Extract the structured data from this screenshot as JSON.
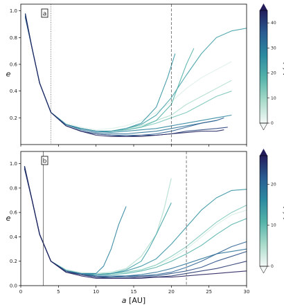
{
  "chart_data": [
    {
      "type": "line",
      "panel_label": "a",
      "xlim": [
        0,
        30
      ],
      "ylim": [
        0,
        1.05
      ],
      "xticks": [
        0,
        5,
        10,
        15,
        20,
        25,
        30
      ],
      "xticklabels_visible": false,
      "yticks": [
        0.2,
        0.4,
        0.6,
        0.8,
        1.0
      ],
      "ytick_labels": [
        "0.2",
        "0.4",
        "0.6",
        "0.8",
        "1.0"
      ],
      "ylabel": "e",
      "xlabel": "",
      "vlines": [
        {
          "x": 4,
          "style": "dotted"
        },
        {
          "x": 20,
          "style": "dashed"
        }
      ],
      "colorbar": {
        "label": "t [kyr]",
        "ticks": [
          0,
          10,
          20,
          30,
          40
        ],
        "tick_labels": [
          "0",
          "10",
          "20",
          "30",
          "40"
        ],
        "vmax": 45,
        "cmap": [
          "#f4f9f7",
          "#a8dbca",
          "#55b3aa",
          "#2c8aa0",
          "#2a5d92",
          "#231d5b"
        ]
      },
      "series": [
        {
          "t": 3,
          "x": [
            0.6,
            1.5,
            2.5,
            4,
            6,
            8,
            10,
            12,
            14,
            16,
            18,
            20,
            22,
            24,
            26,
            28
          ],
          "y": [
            0.97,
            0.72,
            0.46,
            0.24,
            0.16,
            0.13,
            0.11,
            0.12,
            0.14,
            0.18,
            0.24,
            0.32,
            0.42,
            0.5,
            0.56,
            0.62
          ]
        },
        {
          "t": 8,
          "x": [
            0.6,
            1.5,
            2.5,
            4,
            6,
            8,
            10,
            12,
            14,
            16,
            18,
            20,
            22,
            24,
            26,
            28
          ],
          "y": [
            0.96,
            0.72,
            0.46,
            0.24,
            0.15,
            0.12,
            0.1,
            0.1,
            0.12,
            0.14,
            0.18,
            0.22,
            0.3,
            0.36,
            0.42,
            0.48
          ]
        },
        {
          "t": 14,
          "x": [
            0.6,
            1.5,
            2.5,
            4,
            6,
            8,
            10,
            12,
            14,
            16,
            18,
            20,
            22,
            24,
            26,
            28
          ],
          "y": [
            0.98,
            0.72,
            0.46,
            0.24,
            0.15,
            0.12,
            0.1,
            0.1,
            0.11,
            0.13,
            0.16,
            0.2,
            0.24,
            0.3,
            0.36,
            0.4
          ]
        },
        {
          "t": 18,
          "x": [
            0.6,
            1.5,
            2.5,
            4,
            6,
            8,
            10,
            12,
            14,
            16,
            18,
            20,
            21,
            22,
            23
          ],
          "y": [
            0.95,
            0.72,
            0.46,
            0.24,
            0.15,
            0.12,
            0.1,
            0.1,
            0.11,
            0.13,
            0.18,
            0.3,
            0.45,
            0.6,
            0.72
          ]
        },
        {
          "t": 22,
          "x": [
            0.6,
            1.5,
            2.5,
            4,
            6,
            8,
            10,
            12,
            14,
            16,
            18,
            20,
            22,
            24,
            26,
            28,
            30
          ],
          "y": [
            0.97,
            0.72,
            0.46,
            0.24,
            0.15,
            0.12,
            0.1,
            0.1,
            0.12,
            0.15,
            0.22,
            0.35,
            0.52,
            0.68,
            0.8,
            0.85,
            0.87
          ]
        },
        {
          "t": 25,
          "x": [
            0.6,
            1.5,
            2.5,
            4,
            6,
            8,
            10,
            12,
            14,
            16,
            18,
            19.5,
            20.5
          ],
          "y": [
            0.96,
            0.72,
            0.46,
            0.24,
            0.15,
            0.12,
            0.1,
            0.1,
            0.12,
            0.16,
            0.28,
            0.5,
            0.68
          ]
        },
        {
          "t": 28,
          "x": [
            0.6,
            1.5,
            2.5,
            4,
            6,
            8,
            10,
            12,
            14,
            16,
            18,
            20,
            22,
            24,
            26,
            28
          ],
          "y": [
            0.98,
            0.72,
            0.46,
            0.24,
            0.15,
            0.12,
            0.1,
            0.09,
            0.1,
            0.11,
            0.12,
            0.14,
            0.16,
            0.18,
            0.2,
            0.22
          ]
        },
        {
          "t": 32,
          "x": [
            0.6,
            1.5,
            2.5,
            4,
            6,
            8,
            10,
            12,
            14,
            16,
            18,
            20,
            22,
            24,
            26
          ],
          "y": [
            0.95,
            0.72,
            0.46,
            0.24,
            0.15,
            0.11,
            0.09,
            0.08,
            0.08,
            0.09,
            0.1,
            0.12,
            0.14,
            0.16,
            0.18
          ]
        },
        {
          "t": 36,
          "x": [
            0.6,
            1.5,
            2.5,
            4,
            6,
            8,
            10,
            12,
            14,
            16,
            18,
            20,
            22,
            24,
            26,
            27
          ],
          "y": [
            0.97,
            0.72,
            0.46,
            0.24,
            0.14,
            0.1,
            0.08,
            0.07,
            0.07,
            0.07,
            0.08,
            0.1,
            0.13,
            0.16,
            0.18,
            0.2
          ]
        },
        {
          "t": 40,
          "x": [
            0.6,
            1.5,
            2.5,
            4,
            6,
            8,
            10,
            12,
            14,
            16,
            18,
            20,
            22,
            24,
            26,
            27.5
          ],
          "y": [
            0.96,
            0.72,
            0.46,
            0.24,
            0.14,
            0.1,
            0.08,
            0.07,
            0.06,
            0.07,
            0.07,
            0.08,
            0.1,
            0.11,
            0.12,
            0.13
          ]
        },
        {
          "t": 44,
          "x": [
            0.6,
            1.5,
            2.5,
            4,
            6,
            8,
            10,
            12,
            14,
            16,
            18,
            20,
            22,
            24,
            26,
            27
          ],
          "y": [
            0.98,
            0.72,
            0.46,
            0.24,
            0.14,
            0.1,
            0.07,
            0.06,
            0.06,
            0.06,
            0.07,
            0.08,
            0.09,
            0.1,
            0.1,
            0.11
          ]
        }
      ]
    },
    {
      "type": "line",
      "panel_label": "b",
      "xlim": [
        0,
        30
      ],
      "ylim": [
        0,
        1.1
      ],
      "xticks": [
        0,
        5,
        10,
        15,
        20,
        25,
        30
      ],
      "xtick_labels": [
        "0",
        "5",
        "10",
        "15",
        "20",
        "25",
        "30"
      ],
      "yticks": [
        0.0,
        0.2,
        0.4,
        0.6,
        0.8,
        1.0
      ],
      "ytick_labels": [
        "0.0",
        "0.2",
        "0.4",
        "0.6",
        "0.8",
        "1.0"
      ],
      "ylabel": "e",
      "xlabel": "a [AU]",
      "vlines": [
        {
          "x": 3,
          "style": "solid-thin"
        },
        {
          "x": 22,
          "style": "dashed"
        }
      ],
      "colorbar": {
        "label": "t [kyr]",
        "ticks": [
          0,
          10,
          20
        ],
        "tick_labels": [
          "0",
          "10",
          "20"
        ],
        "vmax": 27,
        "cmap": [
          "#f4f9f7",
          "#a8dbca",
          "#55b3aa",
          "#2c8aa0",
          "#2a5d92",
          "#231d5b"
        ]
      },
      "series": [
        {
          "t": 2,
          "x": [
            0.5,
            1.5,
            2.5,
            4,
            6,
            8,
            10,
            12,
            14,
            16,
            18,
            20,
            22,
            24,
            26,
            28,
            30
          ],
          "y": [
            0.98,
            0.7,
            0.42,
            0.2,
            0.13,
            0.11,
            0.1,
            0.1,
            0.11,
            0.13,
            0.17,
            0.22,
            0.3,
            0.4,
            0.5,
            0.58,
            0.62
          ]
        },
        {
          "t": 5,
          "x": [
            0.5,
            1.5,
            2.5,
            4,
            6,
            8,
            10,
            12,
            14,
            16,
            18,
            19,
            20
          ],
          "y": [
            0.97,
            0.7,
            0.42,
            0.2,
            0.13,
            0.1,
            0.1,
            0.11,
            0.14,
            0.24,
            0.42,
            0.62,
            0.88
          ]
        },
        {
          "t": 8,
          "x": [
            0.5,
            1.5,
            2.5,
            4,
            6,
            8,
            10,
            12,
            14,
            16,
            18,
            20,
            22,
            24,
            26,
            28,
            30
          ],
          "y": [
            0.96,
            0.7,
            0.42,
            0.2,
            0.13,
            0.1,
            0.09,
            0.1,
            0.11,
            0.13,
            0.17,
            0.24,
            0.32,
            0.42,
            0.52,
            0.6,
            0.66
          ]
        },
        {
          "t": 11,
          "x": [
            0.5,
            1.5,
            2.5,
            4,
            6,
            8,
            10,
            12,
            14,
            16,
            18,
            20,
            22,
            24,
            26,
            28,
            30
          ],
          "y": [
            0.98,
            0.7,
            0.42,
            0.2,
            0.12,
            0.1,
            0.09,
            0.09,
            0.1,
            0.12,
            0.15,
            0.2,
            0.26,
            0.33,
            0.42,
            0.5,
            0.55
          ]
        },
        {
          "t": 13,
          "x": [
            0.5,
            1.5,
            2.5,
            4,
            6,
            8,
            10,
            12,
            14,
            16,
            17,
            18,
            19,
            20
          ],
          "y": [
            0.96,
            0.7,
            0.42,
            0.2,
            0.12,
            0.1,
            0.09,
            0.1,
            0.13,
            0.2,
            0.3,
            0.42,
            0.55,
            0.68
          ]
        },
        {
          "t": 15,
          "x": [
            0.5,
            1.5,
            2.5,
            4,
            6,
            8,
            10,
            12,
            14,
            16,
            18,
            20,
            22,
            24,
            26,
            28,
            30
          ],
          "y": [
            0.97,
            0.7,
            0.42,
            0.2,
            0.12,
            0.1,
            0.09,
            0.1,
            0.12,
            0.16,
            0.22,
            0.34,
            0.48,
            0.62,
            0.72,
            0.78,
            0.79
          ]
        },
        {
          "t": 17,
          "x": [
            0.5,
            1.5,
            2.5,
            4,
            6,
            8,
            10,
            11,
            12,
            13,
            14
          ],
          "y": [
            0.98,
            0.7,
            0.42,
            0.2,
            0.12,
            0.1,
            0.1,
            0.16,
            0.3,
            0.5,
            0.65
          ]
        },
        {
          "t": 19,
          "x": [
            0.5,
            1.5,
            2.5,
            4,
            6,
            8,
            10,
            12,
            14,
            16,
            18,
            20,
            22,
            24,
            26,
            28,
            30
          ],
          "y": [
            0.96,
            0.7,
            0.42,
            0.2,
            0.12,
            0.1,
            0.08,
            0.08,
            0.08,
            0.09,
            0.11,
            0.14,
            0.18,
            0.22,
            0.26,
            0.28,
            0.3
          ]
        },
        {
          "t": 21,
          "x": [
            0.5,
            1.5,
            2.5,
            4,
            6,
            8,
            10,
            12,
            14,
            16,
            18,
            20,
            22,
            24,
            26,
            28,
            30
          ],
          "y": [
            0.98,
            0.7,
            0.42,
            0.2,
            0.12,
            0.09,
            0.08,
            0.07,
            0.08,
            0.08,
            0.09,
            0.11,
            0.15,
            0.2,
            0.26,
            0.32,
            0.36
          ]
        },
        {
          "t": 23,
          "x": [
            0.5,
            1.5,
            2.5,
            4,
            6,
            8,
            10,
            12,
            14,
            16,
            18,
            20,
            22,
            24,
            26,
            28,
            30
          ],
          "y": [
            0.97,
            0.7,
            0.42,
            0.2,
            0.12,
            0.09,
            0.07,
            0.07,
            0.07,
            0.08,
            0.08,
            0.1,
            0.12,
            0.15,
            0.2,
            0.24,
            0.28
          ]
        },
        {
          "t": 25,
          "x": [
            0.5,
            1.5,
            2.5,
            4,
            6,
            8,
            10,
            12,
            14,
            16,
            18,
            20,
            22,
            24,
            26,
            28,
            30
          ],
          "y": [
            0.96,
            0.7,
            0.42,
            0.2,
            0.11,
            0.09,
            0.07,
            0.06,
            0.06,
            0.07,
            0.07,
            0.08,
            0.1,
            0.12,
            0.14,
            0.17,
            0.2
          ]
        },
        {
          "t": 27,
          "x": [
            0.5,
            1.5,
            2.5,
            4,
            6,
            8,
            10,
            12,
            14,
            16,
            18,
            20,
            22,
            24,
            26,
            28,
            30
          ],
          "y": [
            0.98,
            0.7,
            0.42,
            0.2,
            0.11,
            0.08,
            0.06,
            0.06,
            0.06,
            0.06,
            0.07,
            0.07,
            0.08,
            0.09,
            0.1,
            0.11,
            0.12
          ]
        }
      ]
    }
  ]
}
